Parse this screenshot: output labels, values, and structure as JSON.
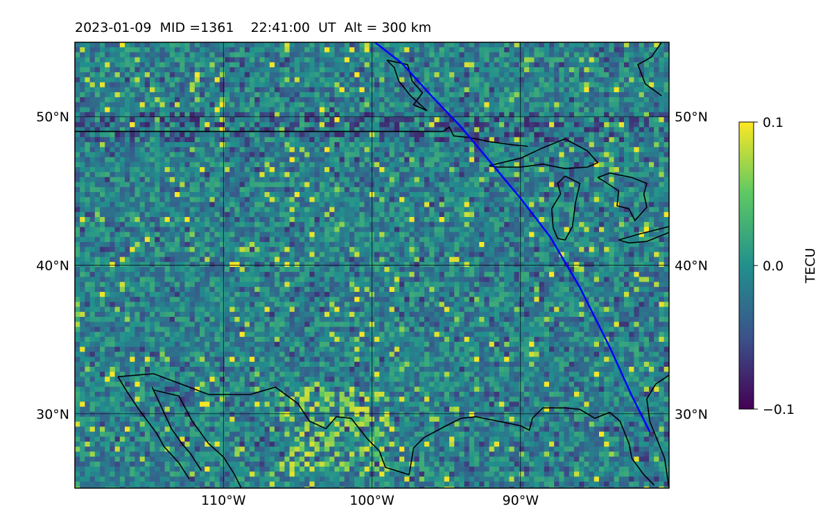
{
  "title": "2023-01-09  MID =1361    22:41:00  UT  Alt = 300 km",
  "map": {
    "lon_range": [
      -120,
      -80
    ],
    "lat_range": [
      25,
      55
    ],
    "gridlines": true,
    "lon_ticks": [
      {
        "value": -110,
        "label": "110°W"
      },
      {
        "value": -100,
        "label": "100°W"
      },
      {
        "value": -90,
        "label": "90°W"
      }
    ],
    "lat_ticks": [
      {
        "value": 30,
        "label": "30°N"
      },
      {
        "value": 40,
        "label": "40°N"
      },
      {
        "value": 50,
        "label": "50°N"
      }
    ],
    "track_color": "#0000ff",
    "track": [
      [
        -99.8,
        55
      ],
      [
        -98,
        53.6
      ],
      [
        -96,
        51.4
      ],
      [
        -94,
        49.3
      ],
      [
        -92,
        46.9
      ],
      [
        -90,
        44.5
      ],
      [
        -88,
        41.9
      ],
      [
        -86,
        38.5
      ],
      [
        -84,
        34.5
      ],
      [
        -82.5,
        31.2
      ],
      [
        -81.3,
        28.8
      ]
    ],
    "border_color": "#000000",
    "us_canada_border": [
      [
        -120,
        49
      ],
      [
        -95.2,
        49
      ],
      [
        -94.8,
        49.3
      ],
      [
        -94.5,
        48.7
      ],
      [
        -93.5,
        48.6
      ],
      [
        -92,
        48.3
      ],
      [
        -90.5,
        48.1
      ],
      [
        -89.5,
        48
      ]
    ],
    "lake_superior": [
      [
        -92.1,
        46.7
      ],
      [
        -90,
        47.2
      ],
      [
        -88.5,
        47.9
      ],
      [
        -87,
        48.5
      ],
      [
        -85.5,
        47.7
      ],
      [
        -84.8,
        46.9
      ],
      [
        -85.5,
        46.6
      ],
      [
        -87,
        46.5
      ],
      [
        -88.5,
        46.8
      ],
      [
        -90,
        46.6
      ],
      [
        -91.5,
        46.6
      ],
      [
        -92.1,
        46.7
      ]
    ],
    "lake_michigan": [
      [
        -87,
        46
      ],
      [
        -86,
        45.5
      ],
      [
        -86.3,
        44.2
      ],
      [
        -86.5,
        42.6
      ],
      [
        -87,
        41.7
      ],
      [
        -87.5,
        41.8
      ],
      [
        -87.8,
        42.5
      ],
      [
        -87.9,
        43.8
      ],
      [
        -87.3,
        44.8
      ],
      [
        -87.5,
        45.5
      ],
      [
        -87,
        46
      ]
    ],
    "lake_huron": [
      [
        -84.8,
        45.9
      ],
      [
        -84,
        46.2
      ],
      [
        -82.5,
        45.9
      ],
      [
        -81.5,
        45.5
      ],
      [
        -81.7,
        44.8
      ],
      [
        -81.5,
        43.9
      ],
      [
        -82.3,
        43
      ],
      [
        -82.7,
        43.8
      ],
      [
        -83.5,
        44
      ],
      [
        -83.4,
        45
      ],
      [
        -84.3,
        45.6
      ],
      [
        -84.8,
        45.9
      ]
    ],
    "lake_erie": [
      [
        -83.4,
        41.7
      ],
      [
        -82,
        42.1
      ],
      [
        -80,
        42.6
      ],
      [
        -80,
        42.2
      ],
      [
        -81.5,
        41.6
      ],
      [
        -82.7,
        41.5
      ],
      [
        -83.4,
        41.7
      ]
    ],
    "mexico_border": [
      [
        -117.1,
        32.5
      ],
      [
        -114.7,
        32.7
      ],
      [
        -111,
        31.3
      ],
      [
        -108.2,
        31.3
      ],
      [
        -106.5,
        31.8
      ],
      [
        -105,
        30.7
      ],
      [
        -104.2,
        29.5
      ],
      [
        -103.1,
        29
      ],
      [
        -102.4,
        29.8
      ],
      [
        -101.4,
        29.7
      ],
      [
        -100.3,
        28.3
      ],
      [
        -99.5,
        27.5
      ],
      [
        -99.1,
        26.4
      ],
      [
        -97.5,
        25.9
      ]
    ],
    "gulf_coast": [
      [
        -97.5,
        25.9
      ],
      [
        -97.2,
        27.7
      ],
      [
        -96.5,
        28.4
      ],
      [
        -95,
        29.2
      ],
      [
        -94,
        29.7
      ],
      [
        -93,
        29.8
      ],
      [
        -92,
        29.6
      ],
      [
        -91,
        29.4
      ],
      [
        -90,
        29.2
      ],
      [
        -89.4,
        28.9
      ],
      [
        -89.2,
        29.7
      ],
      [
        -88.5,
        30.4
      ],
      [
        -87,
        30.4
      ],
      [
        -86,
        30.3
      ],
      [
        -85,
        29.7
      ],
      [
        -84,
        30.1
      ],
      [
        -83.3,
        29.5
      ],
      [
        -82.7,
        28
      ],
      [
        -82.5,
        27
      ],
      [
        -81.7,
        25.9
      ],
      [
        -81,
        25.2
      ]
    ],
    "atlantic_coast": [
      [
        -80,
        25
      ],
      [
        -80.3,
        27
      ],
      [
        -81.3,
        29.5
      ],
      [
        -81.5,
        31
      ],
      [
        -80.9,
        32
      ],
      [
        -80,
        32.6
      ]
    ],
    "baja_west": [
      [
        -117.1,
        32.5
      ],
      [
        -116.5,
        31.5
      ],
      [
        -115.7,
        30.3
      ],
      [
        -114.5,
        28.7
      ],
      [
        -114,
        27.8
      ],
      [
        -113,
        26.7
      ],
      [
        -112.3,
        25.6
      ]
    ],
    "baja_east": [
      [
        -114.8,
        31.8
      ],
      [
        -114.2,
        30.5
      ],
      [
        -113.5,
        29
      ],
      [
        -112.8,
        28
      ],
      [
        -112.2,
        27.3
      ],
      [
        -111.5,
        26.2
      ]
    ],
    "sonora_coast": [
      [
        -114.7,
        31.6
      ],
      [
        -113,
        31.2
      ],
      [
        -112.1,
        29.5
      ],
      [
        -111,
        28
      ],
      [
        -110,
        27.1
      ],
      [
        -109.3,
        26
      ],
      [
        -108.8,
        25
      ]
    ],
    "hudson_bay": [
      [
        -80.5,
        55
      ],
      [
        -81.2,
        54
      ],
      [
        -82.1,
        53.5
      ],
      [
        -81.6,
        52.2
      ],
      [
        -80.5,
        51.4
      ]
    ],
    "lake_winnipeg": [
      [
        -99,
        53.8
      ],
      [
        -97.6,
        53.5
      ],
      [
        -97.3,
        52.4
      ],
      [
        -96.6,
        51.6
      ],
      [
        -97.2,
        50.8
      ],
      [
        -96.3,
        50.4
      ],
      [
        -97.4,
        51.4
      ],
      [
        -98.2,
        52.4
      ],
      [
        -98.5,
        53.3
      ],
      [
        -99,
        53.8
      ]
    ],
    "colormap": {
      "stops": [
        "#440154",
        "#3b528b",
        "#21908d",
        "#5dc863",
        "#fde725"
      ],
      "vmin": -0.1,
      "vmax": 0.1
    }
  },
  "colorbar": {
    "label": "TECU",
    "tick_labels": [
      "−0.1",
      "0.0",
      "0.1"
    ]
  }
}
